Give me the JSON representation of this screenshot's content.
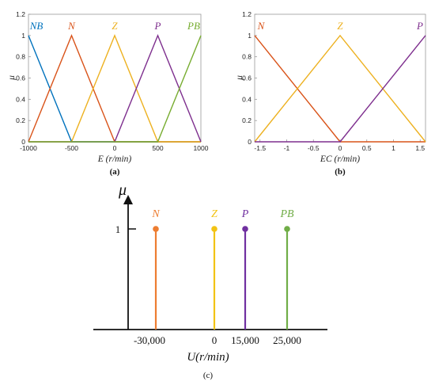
{
  "chart_data": [
    {
      "type": "line",
      "panel": "a",
      "caption": "(a)",
      "xlabel": "E (r/min)",
      "ylabel": "μ",
      "xlim": [
        -1000,
        1000
      ],
      "ylim": [
        0,
        1.2
      ],
      "x_ticks": [
        "-1000",
        "-500",
        "0",
        "500",
        "1000"
      ],
      "x_tick_values": [
        -1000,
        -500,
        0,
        500,
        1000
      ],
      "y_ticks": [
        "0",
        "0.2",
        "0.4",
        "0.6",
        "0.8",
        "1",
        "1.2"
      ],
      "y_tick_values": [
        0,
        0.2,
        0.4,
        0.6,
        0.8,
        1,
        1.2
      ],
      "series": [
        {
          "name": "NB",
          "color": "#0072BD",
          "x": [
            -1000,
            -500,
            1000
          ],
          "y": [
            1,
            0,
            0
          ]
        },
        {
          "name": "N",
          "color": "#D95319",
          "x": [
            -1000,
            -500,
            0,
            1000
          ],
          "y": [
            0,
            1,
            0,
            0
          ]
        },
        {
          "name": "Z",
          "color": "#EDB120",
          "x": [
            -1000,
            -500,
            0,
            500,
            1000
          ],
          "y": [
            0,
            0,
            1,
            0,
            0
          ]
        },
        {
          "name": "P",
          "color": "#7E2F8E",
          "x": [
            -1000,
            0,
            500,
            1000
          ],
          "y": [
            0,
            0,
            1,
            0
          ]
        },
        {
          "name": "PB",
          "color": "#77AC30",
          "x": [
            -1000,
            500,
            1000
          ],
          "y": [
            0,
            0,
            1
          ]
        }
      ]
    },
    {
      "type": "line",
      "panel": "b",
      "caption": "(b)",
      "xlabel": "EC (r/min)",
      "ylabel": "μ",
      "xlim": [
        -1.6,
        1.6
      ],
      "ylim": [
        0,
        1.2
      ],
      "x_ticks": [
        "-1.5",
        "-1",
        "-0.5",
        "0",
        "0.5",
        "1",
        "1.5"
      ],
      "x_tick_values": [
        -1.5,
        -1,
        -0.5,
        0,
        0.5,
        1,
        1.5
      ],
      "y_ticks": [
        "0",
        "0.2",
        "0.4",
        "0.6",
        "0.8",
        "1",
        "1.2"
      ],
      "y_tick_values": [
        0,
        0.2,
        0.4,
        0.6,
        0.8,
        1,
        1.2
      ],
      "series": [
        {
          "name": "N",
          "color": "#D95319",
          "x": [
            -1.6,
            0,
            1.6
          ],
          "y": [
            1,
            0,
            0
          ]
        },
        {
          "name": "Z",
          "color": "#EDB120",
          "x": [
            -1.6,
            0,
            1.6
          ],
          "y": [
            0,
            1,
            0
          ]
        },
        {
          "name": "P",
          "color": "#7E2F8E",
          "x": [
            -1.6,
            0,
            1.6
          ],
          "y": [
            0,
            0,
            1
          ]
        }
      ]
    },
    {
      "type": "scatter",
      "panel": "c",
      "caption": "(c)",
      "xlabel": "U(r/min)",
      "ylabel": "μ",
      "y_tick_label": "1",
      "x_ticks": [
        "-30,000",
        "0",
        "15,000",
        "25,000"
      ],
      "x_tick_values": [
        -30000,
        0,
        15000,
        25000
      ],
      "series": [
        {
          "name": "N",
          "color": "#ED7D31",
          "x": -30000,
          "y": 1
        },
        {
          "name": "Z",
          "color": "#F2C314",
          "x": 0,
          "y": 1
        },
        {
          "name": "P",
          "color": "#7030A0",
          "x": 15000,
          "y": 1
        },
        {
          "name": "PB",
          "color": "#70AD47",
          "x": 25000,
          "y": 1
        }
      ]
    }
  ]
}
